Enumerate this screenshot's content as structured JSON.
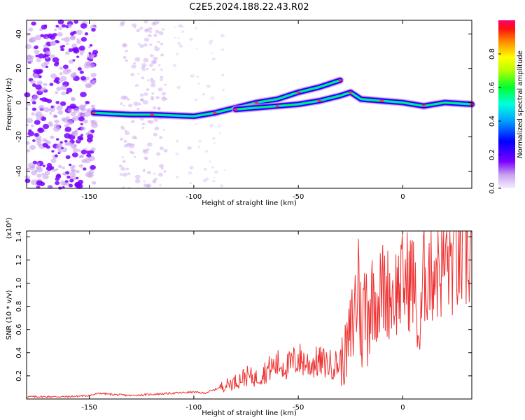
{
  "title": "C2E5.2024.188.22.43.R02",
  "chart_data": [
    {
      "type": "heatmap",
      "xlabel": "Height of straight line (km)",
      "ylabel": "Frequency (Hz)",
      "xlim": [
        -180,
        33
      ],
      "ylim": [
        -50,
        48
      ],
      "xticks": [
        -150,
        -100,
        -50,
        0
      ],
      "yticks": [
        -40,
        -20,
        0,
        20,
        40
      ],
      "colorbar": {
        "label": "Normalized spectral amplitude",
        "range": [
          0,
          1
        ],
        "ticks": [
          0.0,
          0.2,
          0.4,
          0.6,
          0.8
        ],
        "colormap": "rainbow"
      },
      "ridges": [
        {
          "name": "",
          "x": [
            -148,
            -130,
            -120,
            -100,
            -90,
            -80,
            -70,
            -60,
            -50,
            -40,
            -30
          ],
          "y": [
            -6,
            -7,
            -7,
            -8,
            -6,
            -3,
            0,
            2,
            6,
            9,
            13
          ]
        },
        {
          "name": "",
          "x": [
            -80,
            -70,
            -60,
            -50,
            -40,
            -30,
            -25,
            -20,
            -10,
            0,
            10,
            20,
            33
          ],
          "y": [
            -4,
            -3,
            -2,
            -1,
            1,
            4,
            6,
            2,
            1,
            0,
            -2,
            0,
            -1
          ]
        }
      ]
    },
    {
      "type": "line",
      "xlabel": "Height of straight line (km)",
      "ylabel": "SNR (10 * v/v)",
      "multiplier_label": "(x10⁴)",
      "xlim": [
        -180,
        33
      ],
      "ylim": [
        0,
        1.45
      ],
      "xticks": [
        -150,
        -100,
        -50,
        0
      ],
      "yticks": [
        0.2,
        0.4,
        0.6,
        0.8,
        1.0,
        1.2,
        1.4
      ],
      "color": "#ee3333",
      "series": [
        {
          "name": "",
          "x": [
            -180,
            -160,
            -150,
            -145,
            -140,
            -130,
            -120,
            -110,
            -100,
            -95,
            -90,
            -85,
            -80,
            -75,
            -70,
            -65,
            -60,
            -55,
            -50,
            -45,
            -40,
            -35,
            -30,
            -27,
            -25,
            -23,
            -21,
            -20,
            -18,
            -15,
            -12,
            -10,
            -5,
            0,
            5,
            8,
            10,
            15,
            20,
            25,
            30,
            33
          ],
          "y": [
            0.02,
            0.02,
            0.03,
            0.05,
            0.04,
            0.03,
            0.04,
            0.05,
            0.06,
            0.05,
            0.08,
            0.12,
            0.15,
            0.2,
            0.18,
            0.25,
            0.3,
            0.28,
            0.35,
            0.3,
            0.32,
            0.3,
            0.3,
            0.4,
            0.55,
            0.75,
            1.1,
            0.6,
            0.8,
            0.9,
            0.85,
            0.95,
            0.9,
            1.0,
            1.05,
            0.45,
            1.1,
            1.15,
            1.2,
            1.22,
            1.26,
            1.28
          ]
        }
      ]
    }
  ]
}
